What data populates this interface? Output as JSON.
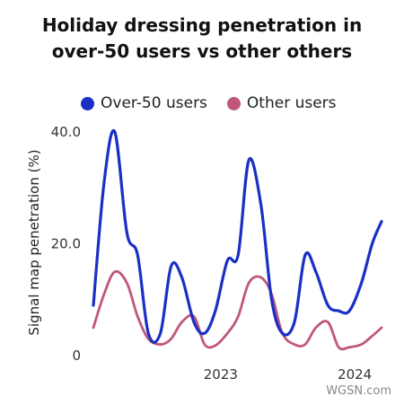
{
  "chart_data": {
    "type": "line",
    "title_lines": [
      "Holiday dressing penetration in",
      "over-50 users vs other others"
    ],
    "ylabel": "Signal map penetration (%)",
    "xlabel": "",
    "ylim": [
      0,
      40
    ],
    "y_ticks": [
      {
        "value": 0,
        "label": "0"
      },
      {
        "value": 20,
        "label": "20.0"
      },
      {
        "value": 40,
        "label": "40.0"
      }
    ],
    "x_ticks": [
      {
        "value": 2023.0,
        "label": "2023"
      },
      {
        "value": 2024.0,
        "label": "2024"
      }
    ],
    "xlim": [
      2022.05,
      2024.2
    ],
    "grid": false,
    "legend_position": "top-left",
    "series": [
      {
        "name": "Over-50 users",
        "color": "#1a2fc4",
        "x": [
          2022.05,
          2022.13,
          2022.21,
          2022.3,
          2022.38,
          2022.46,
          2022.55,
          2022.63,
          2022.71,
          2022.8,
          2022.88,
          2022.96,
          2023.05,
          2023.13,
          2023.21,
          2023.3,
          2023.38,
          2023.46,
          2023.55,
          2023.63,
          2023.71,
          2023.8,
          2023.88,
          2023.96,
          2024.05,
          2024.13,
          2024.2
        ],
        "values": [
          9,
          31,
          40,
          22,
          18,
          4,
          4,
          16,
          14,
          6,
          4,
          8,
          17,
          18,
          35,
          27,
          10,
          4,
          6,
          18,
          15,
          9,
          8,
          8,
          13,
          20,
          24
        ]
      },
      {
        "name": "Other users",
        "color": "#c0577a",
        "x": [
          2022.05,
          2022.13,
          2022.21,
          2022.3,
          2022.38,
          2022.46,
          2022.55,
          2022.63,
          2022.71,
          2022.8,
          2022.88,
          2022.96,
          2023.05,
          2023.13,
          2023.21,
          2023.3,
          2023.38,
          2023.46,
          2023.55,
          2023.63,
          2023.71,
          2023.8,
          2023.88,
          2023.96,
          2024.05,
          2024.13,
          2024.2
        ],
        "values": [
          5,
          11,
          15,
          13,
          7,
          3,
          2,
          3,
          6,
          7,
          2,
          1.8,
          4,
          7,
          13,
          14,
          11,
          4,
          2,
          2,
          5,
          6,
          1.5,
          1.5,
          2,
          3.5,
          5
        ]
      }
    ]
  },
  "footer": {
    "source": "WGSN.com"
  }
}
